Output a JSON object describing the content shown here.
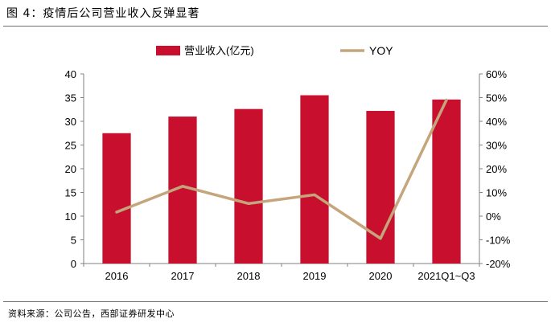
{
  "figure_title": "图 4：疫情后公司营业收入反弹显著",
  "source_note": "资料来源：公司公告，西部证券研发中心",
  "colors": {
    "bar": "#c8102e",
    "line": "#c4a57c",
    "axis": "#808080",
    "text": "#000000"
  },
  "chart_data": {
    "type": "bar",
    "title": "",
    "categories": [
      "2016",
      "2017",
      "2018",
      "2019",
      "2020",
      "2021Q1~Q3"
    ],
    "series": [
      {
        "name": "营业收入(亿元)",
        "type": "bar",
        "axis": "left",
        "values": [
          27.5,
          31.0,
          32.6,
          35.5,
          32.2,
          34.6
        ]
      },
      {
        "name": "YOY",
        "type": "line",
        "axis": "right",
        "values": [
          1.7,
          12.6,
          5.3,
          9.0,
          -9.4,
          49.0
        ]
      }
    ],
    "y_left": {
      "min": 0,
      "max": 40,
      "step": 5,
      "tick_labels": [
        "0",
        "5",
        "10",
        "15",
        "20",
        "25",
        "30",
        "35",
        "40"
      ]
    },
    "y_right": {
      "min": -20,
      "max": 60,
      "step": 10,
      "tick_labels": [
        "-20%",
        "-10%",
        "0%",
        "10%",
        "20%",
        "30%",
        "40%",
        "50%",
        "60%"
      ]
    },
    "legend": {
      "position": "top",
      "labels": [
        "营业收入(亿元)",
        "YOY"
      ]
    },
    "grid": false
  }
}
